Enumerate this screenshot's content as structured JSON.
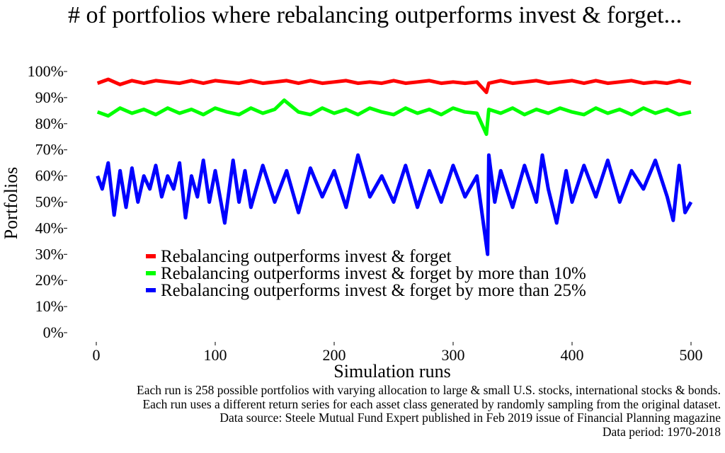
{
  "chart_data": {
    "type": "line",
    "title": "# of portfolios where rebalancing outperforms invest & forget...",
    "xlabel": "Simulation runs",
    "ylabel": "Portfolios",
    "xlim": [
      0,
      500
    ],
    "ylim": [
      0,
      1
    ],
    "x_ticks": [
      0,
      100,
      200,
      300,
      400,
      500
    ],
    "x_tick_labels": [
      "0",
      "100",
      "200",
      "300",
      "400",
      "500"
    ],
    "y_ticks": [
      0,
      0.1,
      0.2,
      0.3,
      0.4,
      0.5,
      0.6,
      0.7,
      0.8,
      0.9,
      1.0
    ],
    "y_tick_labels": [
      "0%",
      "10%",
      "20%",
      "30%",
      "40%",
      "50%",
      "60%",
      "70%",
      "80%",
      "90%",
      "100%"
    ],
    "grid": false,
    "legend_position": "lower-center",
    "series": [
      {
        "name": "Rebalancing outperforms invest & forget",
        "color": "#ff0000",
        "x": [
          1,
          10,
          20,
          30,
          40,
          50,
          60,
          70,
          80,
          90,
          100,
          110,
          120,
          130,
          140,
          150,
          160,
          170,
          180,
          190,
          200,
          210,
          220,
          230,
          240,
          250,
          260,
          270,
          280,
          290,
          300,
          310,
          320,
          328,
          330,
          340,
          350,
          360,
          370,
          380,
          390,
          400,
          410,
          420,
          430,
          440,
          450,
          460,
          470,
          480,
          490,
          500
        ],
        "values": [
          0.955,
          0.97,
          0.95,
          0.965,
          0.955,
          0.965,
          0.96,
          0.955,
          0.965,
          0.955,
          0.965,
          0.96,
          0.955,
          0.965,
          0.955,
          0.96,
          0.965,
          0.955,
          0.965,
          0.955,
          0.96,
          0.965,
          0.955,
          0.96,
          0.955,
          0.965,
          0.955,
          0.96,
          0.965,
          0.955,
          0.96,
          0.955,
          0.96,
          0.92,
          0.955,
          0.965,
          0.955,
          0.96,
          0.965,
          0.955,
          0.96,
          0.965,
          0.955,
          0.965,
          0.955,
          0.96,
          0.965,
          0.955,
          0.96,
          0.955,
          0.965,
          0.955
        ]
      },
      {
        "name": "Rebalancing outperforms invest & forget by more than 10%",
        "color": "#00ff00",
        "x": [
          1,
          10,
          20,
          30,
          40,
          50,
          60,
          70,
          80,
          90,
          100,
          110,
          120,
          130,
          140,
          150,
          158,
          170,
          180,
          190,
          200,
          210,
          220,
          230,
          240,
          250,
          260,
          270,
          280,
          290,
          300,
          310,
          320,
          328,
          330,
          340,
          350,
          360,
          370,
          380,
          390,
          400,
          410,
          420,
          430,
          440,
          450,
          460,
          470,
          480,
          490,
          500
        ],
        "values": [
          0.845,
          0.83,
          0.86,
          0.84,
          0.855,
          0.835,
          0.86,
          0.84,
          0.855,
          0.835,
          0.86,
          0.845,
          0.835,
          0.86,
          0.84,
          0.855,
          0.89,
          0.845,
          0.835,
          0.86,
          0.84,
          0.855,
          0.835,
          0.86,
          0.845,
          0.835,
          0.86,
          0.84,
          0.855,
          0.835,
          0.86,
          0.845,
          0.84,
          0.76,
          0.855,
          0.84,
          0.86,
          0.835,
          0.855,
          0.84,
          0.86,
          0.845,
          0.835,
          0.86,
          0.84,
          0.855,
          0.835,
          0.86,
          0.84,
          0.855,
          0.835,
          0.845
        ]
      },
      {
        "name": "Rebalancing outperforms invest & forget by more than 25%",
        "color": "#0000ff",
        "x": [
          1,
          5,
          10,
          15,
          20,
          25,
          30,
          35,
          40,
          45,
          50,
          55,
          60,
          65,
          70,
          75,
          80,
          85,
          90,
          95,
          100,
          108,
          115,
          120,
          125,
          130,
          140,
          150,
          160,
          170,
          180,
          190,
          200,
          210,
          220,
          230,
          240,
          250,
          260,
          270,
          280,
          290,
          300,
          310,
          320,
          329,
          330,
          335,
          340,
          350,
          360,
          370,
          375,
          380,
          387,
          395,
          400,
          410,
          420,
          430,
          440,
          450,
          460,
          470,
          480,
          485,
          490,
          495,
          500
        ],
        "values": [
          0.6,
          0.55,
          0.65,
          0.45,
          0.62,
          0.48,
          0.63,
          0.5,
          0.6,
          0.55,
          0.64,
          0.52,
          0.6,
          0.55,
          0.65,
          0.44,
          0.6,
          0.52,
          0.66,
          0.5,
          0.62,
          0.42,
          0.66,
          0.5,
          0.62,
          0.48,
          0.64,
          0.5,
          0.62,
          0.46,
          0.63,
          0.52,
          0.62,
          0.48,
          0.68,
          0.52,
          0.6,
          0.5,
          0.64,
          0.48,
          0.62,
          0.5,
          0.64,
          0.52,
          0.6,
          0.3,
          0.68,
          0.5,
          0.62,
          0.48,
          0.64,
          0.5,
          0.68,
          0.55,
          0.42,
          0.62,
          0.5,
          0.64,
          0.52,
          0.66,
          0.5,
          0.62,
          0.55,
          0.66,
          0.52,
          0.43,
          0.64,
          0.46,
          0.5
        ]
      }
    ],
    "footnotes": [
      "Each run is 258 possible portfolios with varying allocation to large & small U.S. stocks, international stocks & bonds.",
      "Each run uses a different return series for each asset class generated by randomly sampling from the original dataset.",
      "Data source: Steele Mutual Fund Expert published in Feb 2019 issue of Financial Planning magazine",
      "Data period: 1970-2018"
    ]
  }
}
